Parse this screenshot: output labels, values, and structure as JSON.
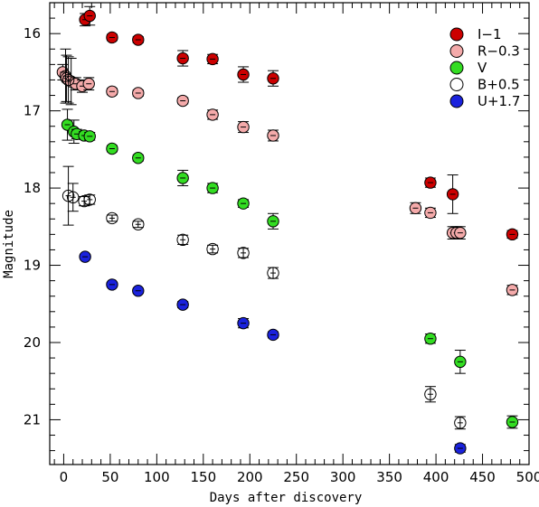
{
  "chart_data": {
    "type": "scatter",
    "title": "",
    "xlabel": "Days after discovery",
    "ylabel": "Magnitude",
    "xlim": [
      -15,
      500
    ],
    "ylim": [
      15.6,
      21.58
    ],
    "y_inverted": true,
    "x_ticks": [
      0,
      50,
      100,
      150,
      200,
      250,
      300,
      350,
      400,
      450,
      500
    ],
    "y_ticks": [
      16,
      17,
      18,
      19,
      20,
      21
    ],
    "grid": false,
    "legend_position": "top-right",
    "series": [
      {
        "name": "I−1",
        "color": "#cc0000",
        "points": [
          {
            "x": 23,
            "y": 15.82,
            "err": 0.08
          },
          {
            "x": 28,
            "y": 15.77,
            "err": 0.12
          },
          {
            "x": 52,
            "y": 16.05,
            "err": 0.04
          },
          {
            "x": 80,
            "y": 16.08,
            "err": 0.04
          },
          {
            "x": 128,
            "y": 16.32,
            "err": 0.1
          },
          {
            "x": 160,
            "y": 16.33,
            "err": 0.06
          },
          {
            "x": 193,
            "y": 16.53,
            "err": 0.1
          },
          {
            "x": 225,
            "y": 16.58,
            "err": 0.1
          },
          {
            "x": 394,
            "y": 17.93,
            "err": 0.06
          },
          {
            "x": 418,
            "y": 18.08,
            "err": 0.25
          },
          {
            "x": 482,
            "y": 18.6,
            "err": 0.05
          }
        ]
      },
      {
        "name": "R−0.3",
        "color": "#f4aaaa",
        "points": [
          {
            "x": -1,
            "y": 16.5,
            "err": 0.1
          },
          {
            "x": 3,
            "y": 16.58,
            "err": 0.3
          },
          {
            "x": 8,
            "y": 16.62,
            "err": 0.3
          },
          {
            "x": 13,
            "y": 16.65,
            "err": 0.08
          },
          {
            "x": 20,
            "y": 16.68,
            "err": 0.08
          },
          {
            "x": 27,
            "y": 16.65,
            "err": 0.08
          },
          {
            "x": 52,
            "y": 16.75,
            "err": 0.04
          },
          {
            "x": 80,
            "y": 16.77,
            "err": 0.04
          },
          {
            "x": 128,
            "y": 16.87,
            "err": 0.04
          },
          {
            "x": 160,
            "y": 17.05,
            "err": 0.06
          },
          {
            "x": 193,
            "y": 17.21,
            "err": 0.07
          },
          {
            "x": 225,
            "y": 17.32,
            "err": 0.07
          },
          {
            "x": 378,
            "y": 18.26,
            "err": 0.07
          },
          {
            "x": 394,
            "y": 18.32,
            "err": 0.06
          },
          {
            "x": 418,
            "y": 18.58,
            "err": 0.08
          },
          {
            "x": 422,
            "y": 18.58,
            "err": 0.08
          },
          {
            "x": 426,
            "y": 18.58,
            "err": 0.08
          },
          {
            "x": 482,
            "y": 19.32,
            "err": 0.06
          }
        ]
      },
      {
        "name": "V",
        "color": "#33dd22",
        "points": [
          {
            "x": 4,
            "y": 17.18,
            "err": 0.2
          },
          {
            "x": 11,
            "y": 17.27,
            "err": 0.15
          },
          {
            "x": 14,
            "y": 17.3,
            "err": 0.06
          },
          {
            "x": 22,
            "y": 17.32,
            "err": 0.05
          },
          {
            "x": 28,
            "y": 17.33,
            "err": 0.05
          },
          {
            "x": 52,
            "y": 17.49,
            "err": 0.04
          },
          {
            "x": 80,
            "y": 17.61,
            "err": 0.04
          },
          {
            "x": 128,
            "y": 17.87,
            "err": 0.1
          },
          {
            "x": 160,
            "y": 18.0,
            "err": 0.06
          },
          {
            "x": 193,
            "y": 18.2,
            "err": 0.05
          },
          {
            "x": 225,
            "y": 18.43,
            "err": 0.1
          },
          {
            "x": 394,
            "y": 19.95,
            "err": 0.06
          },
          {
            "x": 426,
            "y": 20.25,
            "err": 0.15
          },
          {
            "x": 482,
            "y": 21.03,
            "err": 0.08
          }
        ]
      },
      {
        "name": "B+0.5",
        "color": "#ffffff",
        "points": [
          {
            "x": 2,
            "y": 16.55,
            "err": 0.35
          },
          {
            "x": 5,
            "y": 16.6,
            "err": 0.3
          },
          {
            "x": 5,
            "y": 18.1,
            "err": 0.38
          },
          {
            "x": 10,
            "y": 18.12,
            "err": 0.18
          },
          {
            "x": 22,
            "y": 18.17,
            "err": 0.06
          },
          {
            "x": 28,
            "y": 18.15,
            "err": 0.06
          },
          {
            "x": 52,
            "y": 18.39,
            "err": 0.04
          },
          {
            "x": 80,
            "y": 18.47,
            "err": 0.04
          },
          {
            "x": 128,
            "y": 18.67,
            "err": 0.06
          },
          {
            "x": 160,
            "y": 18.79,
            "err": 0.05
          },
          {
            "x": 193,
            "y": 18.84,
            "err": 0.06
          },
          {
            "x": 225,
            "y": 19.1,
            "err": 0.07
          },
          {
            "x": 394,
            "y": 20.67,
            "err": 0.1
          },
          {
            "x": 426,
            "y": 21.04,
            "err": 0.08
          }
        ]
      },
      {
        "name": "U+1.7",
        "color": "#1a22dd",
        "points": [
          {
            "x": 23,
            "y": 18.89,
            "err": 0.03
          },
          {
            "x": 52,
            "y": 19.25,
            "err": 0.03
          },
          {
            "x": 80,
            "y": 19.33,
            "err": 0.03
          },
          {
            "x": 128,
            "y": 19.51,
            "err": 0.04
          },
          {
            "x": 193,
            "y": 19.75,
            "err": 0.06
          },
          {
            "x": 225,
            "y": 19.9,
            "err": 0.04
          },
          {
            "x": 426,
            "y": 21.37,
            "err": 0.05
          }
        ]
      }
    ]
  }
}
